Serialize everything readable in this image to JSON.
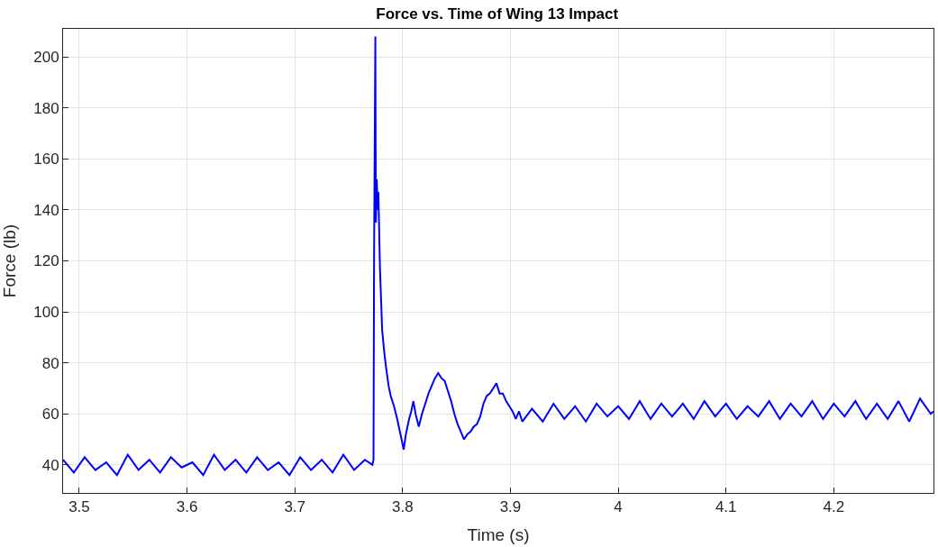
{
  "chart_data": {
    "type": "line",
    "title": "Force vs. Time of Wing 13 Impact",
    "xlabel": "Time (s)",
    "ylabel": "Force (lb)",
    "xlim": [
      3.485,
      4.2925
    ],
    "ylim": [
      29,
      211
    ],
    "xticks": [
      3.5,
      3.6,
      3.7,
      3.8,
      3.9,
      4,
      4.1,
      4.2
    ],
    "yticks": [
      40,
      60,
      80,
      100,
      120,
      140,
      160,
      180,
      200
    ],
    "grid": true,
    "marker": "none",
    "line_style": "solid",
    "series": [
      {
        "color": "#0000ff",
        "x": [
          3.485,
          3.495,
          3.505,
          3.515,
          3.525,
          3.535,
          3.545,
          3.555,
          3.565,
          3.575,
          3.585,
          3.595,
          3.605,
          3.615,
          3.625,
          3.635,
          3.645,
          3.655,
          3.665,
          3.675,
          3.685,
          3.695,
          3.705,
          3.715,
          3.725,
          3.735,
          3.745,
          3.755,
          3.765,
          3.772,
          3.773,
          3.7735,
          3.7747,
          3.7752,
          3.776,
          3.777,
          3.7775,
          3.779,
          3.781,
          3.783,
          3.785,
          3.787,
          3.789,
          3.792,
          3.795,
          3.798,
          3.801,
          3.803,
          3.806,
          3.808,
          3.81,
          3.812,
          3.815,
          3.818,
          3.821,
          3.824,
          3.827,
          3.83,
          3.833,
          3.836,
          3.839,
          3.842,
          3.845,
          3.848,
          3.851,
          3.854,
          3.857,
          3.86,
          3.863,
          3.866,
          3.869,
          3.872,
          3.875,
          3.878,
          3.881,
          3.884,
          3.887,
          3.89,
          3.893,
          3.896,
          3.899,
          3.902,
          3.905,
          3.908,
          3.911,
          3.92,
          3.93,
          3.94,
          3.95,
          3.96,
          3.97,
          3.98,
          3.99,
          4.0,
          4.01,
          4.02,
          4.03,
          4.04,
          4.05,
          4.06,
          4.07,
          4.08,
          4.09,
          4.1,
          4.11,
          4.12,
          4.13,
          4.14,
          4.15,
          4.16,
          4.17,
          4.18,
          4.19,
          4.2,
          4.21,
          4.22,
          4.23,
          4.24,
          4.25,
          4.26,
          4.27,
          4.28,
          4.29,
          4.2925
        ],
        "values": [
          42,
          37,
          43,
          38,
          41,
          36,
          44,
          38,
          42,
          37,
          43,
          39,
          41,
          36,
          44,
          38,
          42,
          37,
          43,
          38,
          41,
          36,
          43,
          38,
          42,
          37,
          44,
          38,
          42,
          40,
          42,
          120,
          208,
          135,
          152,
          140,
          147,
          117,
          93,
          84,
          77,
          71,
          67,
          63,
          58,
          52,
          46,
          52,
          58,
          61,
          65,
          60,
          55,
          60,
          64,
          68,
          71,
          74,
          76,
          74,
          73,
          69,
          65,
          60,
          56,
          53,
          50,
          52,
          53,
          55,
          56,
          59,
          64,
          67,
          68,
          70,
          72,
          68,
          68,
          65,
          63,
          61,
          58,
          61,
          57,
          62,
          57,
          64,
          58,
          63,
          57,
          64,
          59,
          63,
          58,
          65,
          58,
          64,
          59,
          64,
          58,
          65,
          59,
          64,
          58,
          63,
          59,
          65,
          58,
          64,
          59,
          65,
          58,
          64,
          59,
          65,
          58,
          64,
          58,
          65,
          57,
          66,
          60,
          61
        ]
      }
    ]
  }
}
